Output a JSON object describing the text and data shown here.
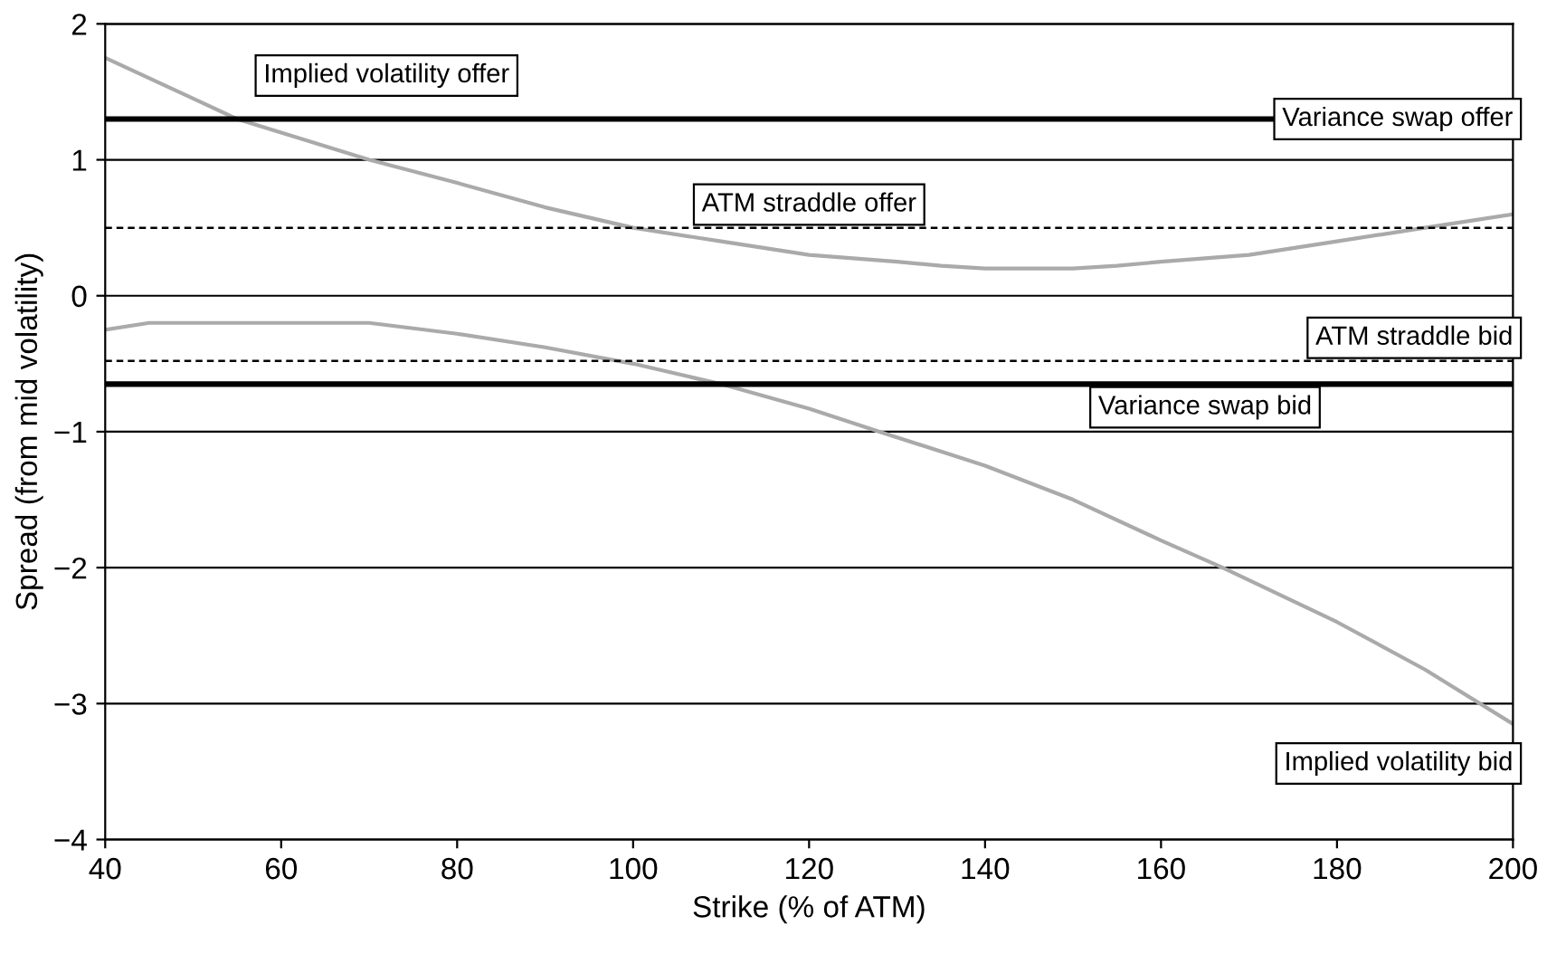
{
  "chart_data": {
    "type": "line",
    "xlabel": "Strike (% of ATM)",
    "ylabel": "Spread (from mid volatility)",
    "xlim": [
      40,
      200
    ],
    "xticks": [
      40,
      60,
      80,
      100,
      120,
      140,
      160,
      180,
      200
    ],
    "ylim": [
      -4,
      2
    ],
    "yticks": [
      {
        "value": -4,
        "label": "−4"
      },
      {
        "value": -3,
        "label": "−3"
      },
      {
        "value": -2,
        "label": "−2"
      },
      {
        "value": -1,
        "label": "−1"
      },
      0,
      1,
      2
    ],
    "grid": "y",
    "marker": "none",
    "line_style": "solid",
    "series": [
      {
        "name": "Implied volatility offer",
        "color": "#aaaaaa",
        "x": [
          40,
          45,
          50,
          55,
          60,
          70,
          80,
          90,
          100,
          110,
          120,
          130,
          135,
          140,
          150,
          155,
          160,
          170,
          180,
          190,
          200
        ],
        "values": [
          1.75,
          1.6,
          1.45,
          1.3,
          1.2,
          1.0,
          0.83,
          0.65,
          0.5,
          0.4,
          0.3,
          0.25,
          0.22,
          0.2,
          0.2,
          0.22,
          0.25,
          0.3,
          0.4,
          0.5,
          0.6
        ]
      },
      {
        "name": "Implied volatility bid",
        "color": "#aaaaaa",
        "x": [
          40,
          45,
          50,
          60,
          70,
          80,
          90,
          100,
          110,
          120,
          128,
          140,
          150,
          160,
          167,
          180,
          190,
          200
        ],
        "values": [
          -0.25,
          -0.2,
          -0.2,
          -0.2,
          -0.2,
          -0.28,
          -0.38,
          -0.5,
          -0.65,
          -0.83,
          -1.0,
          -1.25,
          -1.5,
          -1.8,
          -2.0,
          -2.4,
          -2.75,
          -3.15
        ]
      }
    ],
    "ref_lines": [
      {
        "axis": "y",
        "value": 1.3,
        "label": "Variance swap offer",
        "color": "#000000",
        "line_style": "solid"
      },
      {
        "axis": "y",
        "value": 0.5,
        "label": "ATM straddle offer",
        "color": "#000000",
        "line_style": "dashed"
      },
      {
        "axis": "y",
        "value": -0.48,
        "label": "ATM straddle bid",
        "color": "#000000",
        "line_style": "dashed"
      },
      {
        "axis": "y",
        "value": -0.65,
        "label": "Variance swap bid",
        "color": "#000000",
        "line_style": "solid"
      }
    ]
  }
}
